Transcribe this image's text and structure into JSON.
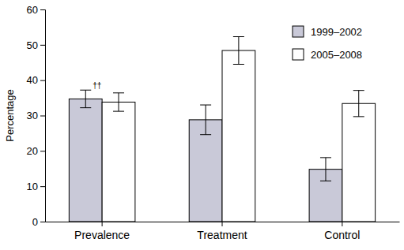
{
  "chart_data": {
    "type": "bar",
    "y_label": "Percentage",
    "categories": [
      "Prevalence",
      "Treatment",
      "Control"
    ],
    "series": [
      {
        "name": "1999–2002",
        "color": "#c9c9d8",
        "values": [
          34.7,
          28.8,
          14.8
        ],
        "errors": [
          2.5,
          4.2,
          3.3
        ]
      },
      {
        "name": "2005–2008",
        "color": "#ffffff",
        "values": [
          33.8,
          48.4,
          33.4
        ],
        "errors": [
          2.6,
          3.9,
          3.7
        ]
      }
    ],
    "annotations": [
      {
        "text": "††",
        "category": "Prevalence",
        "series": "1999–2002"
      }
    ],
    "ylim": [
      0,
      60
    ],
    "yticks": [
      0,
      10,
      20,
      30,
      40,
      50,
      60
    ],
    "grid": false,
    "legend": "top-right"
  }
}
